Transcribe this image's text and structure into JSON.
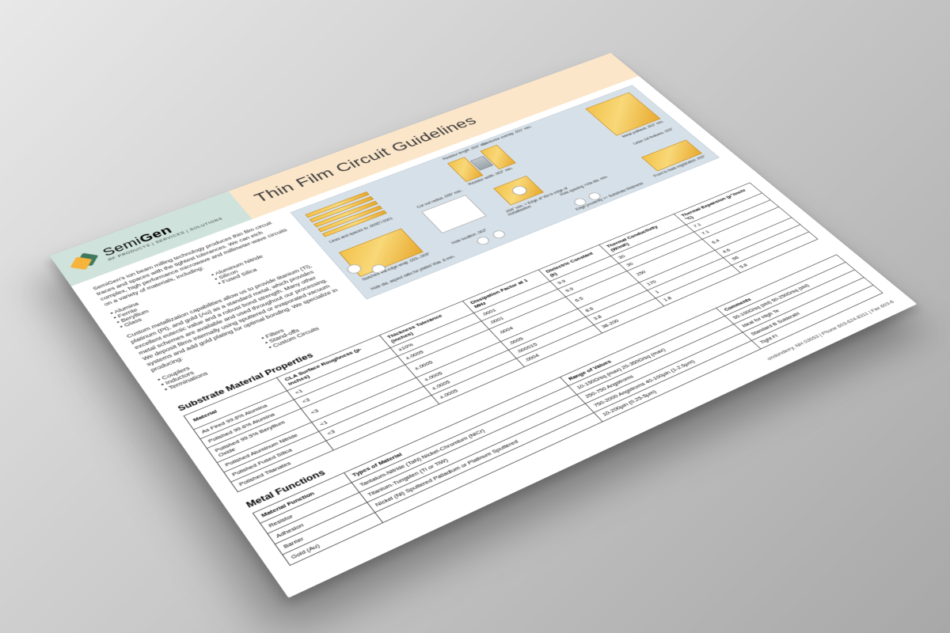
{
  "brand": {
    "name_light": "Semi",
    "name_bold": "Gen",
    "tagline": "RF PRODUCTS | SERVICES | SOLUTIONS",
    "logo_colors": {
      "front": "#f6b43c",
      "back": "#2f6b4f"
    },
    "header_left_bg": "#cfe3dc",
    "header_right_bg": "#fbe6c9"
  },
  "title": "Thin Film Circuit Guidelines",
  "intro": {
    "p1": "SemiGen's ion beam milling technology produces thin film circuit traces and spaces with the tightest tolerances. We can etch complex, high performance microwave and millimeter-wave circuits on a variety of materials, including:",
    "materials": [
      "Alumina",
      "Aluminum Nitride",
      "Ferrite",
      "Silicon",
      "Beryllium",
      "Fused Silica",
      "Glass"
    ],
    "p2": "Custom metallization capabilities allow us to provide titanium (Ti), platinum (Pt), and gold (Au) as a standard metal, which provides excellent eutectic value and a robust bond strength. Many other metal schemes are available and used throughout our processing. We deposit films internally using sputtered or evaporated vacuum systems and add gold plating for optimal bonding. We specialize in producing:",
    "products": [
      "Couplers",
      "Filters",
      "Inductors",
      "Stand-offs",
      "Terminations",
      "Custom Circuits"
    ]
  },
  "diagram": {
    "bg": "#d6e0e8",
    "gold_gradient": [
      "#f2c24a",
      "#f8d878",
      "#e8a92f"
    ],
    "labels": {
      "lines_spaces": "Lines and spaces to .0005\"/.0001",
      "notched_via": "Notched Via edge wrap .003–.009\"",
      "hole_aspect": "Hole dia. aspect ratio for plated Vias .6 min.",
      "cutout_radius": "Cut out radius .005\" min.",
      "hole_location": "Hole location .002\"",
      "resistor_len": "Resistor length .002\" min.",
      "resistor_w": "Resistor width .002\" min.",
      "conductor_overlap": "Conductor overlap .001\" min.",
      "via_edge": ".004\" min. = Edge of Via to edge of metallization",
      "hole_spacing": "Hole spacing >Via dia. min.",
      "edge_prox": "Edge proximity >= Substrate thickness",
      "metal_pullback": "Metal pullback .002\" min.",
      "laser_cut": "Laser cut features .003\"",
      "front_back": "Front to back registration .002\""
    }
  },
  "table1": {
    "title": "Substrate Material Properties",
    "cols": [
      "Material",
      "CLA Surface Roughness (µ-inches)",
      "Thickness Tolerance (inches)",
      "Dissipation Factor at 1 MHz",
      "Dielectric Constant (k)",
      "Thermal Conductivity (W/mK)",
      "Thermal Expansion (µ\"/inch/°C)"
    ],
    "rows": [
      [
        "As Fired 99.6% Alumina",
        "<1",
        "±10%",
        ".0001",
        "9.9",
        "30",
        "7.1"
      ],
      [
        "Polished 99.6% Alumina",
        "<3",
        "±.0005",
        ".0001",
        "9.9",
        "30",
        "7.1"
      ],
      [
        "Polished 99.5% Beryllium Oxide",
        "<3",
        "±.0005",
        ".0004",
        "6.5",
        "250",
        "6.4"
      ],
      [
        "Polished Aluminum Nitride",
        "<1",
        "±.0005",
        ".0005",
        "8.6",
        "170",
        "4.6"
      ],
      [
        "Polished Fused Silica",
        "<3",
        "±.0005",
        ".000015",
        "3.8",
        "1",
        ".56"
      ],
      [
        "Polished Titanates",
        "",
        "±.0005",
        ".0004",
        "38-200",
        "1.8",
        "5.8"
      ]
    ]
  },
  "table2": {
    "title": "Metal Functions",
    "cols": [
      "Material Function",
      "Types of Material",
      "Range of Values",
      "Comments"
    ],
    "rows": [
      [
        "Resistor",
        "Tantalum-Nitride (TaN) Nickel-Chromium (NiCr)",
        "10-150Ω/sq (max) 20-350Ω/sq (max)",
        "50-100Ω/sq (std) 50-250Ω/sq (std)"
      ],
      [
        "Adhesion",
        "Titanium-Tungsten (Ti or TiW)",
        "250-750 Angstroms",
        "Ideal for High Te"
      ],
      [
        "Barrier",
        "Nickel (Ni) Sputtered Palladium or Platinum Sputtered",
        "750-2000 Angstroms 40-100µin (1-2.5µm)",
        "Standard B Solderabl"
      ],
      [
        "Gold (Au)",
        "",
        "10-200µin (0.25-5µm)",
        "Tight Fi"
      ]
    ]
  },
  "footer": "ondonderry, NH 03053   |   Phone 603-624-8311   |   Fax 603-6",
  "style": {
    "page_bg": "#ffffff",
    "text_color": "#222222",
    "border_color": "#555555",
    "title_fontsize": 28,
    "sect_fontsize": 13,
    "body_fontsize": 9,
    "table_fontsize": 8
  }
}
